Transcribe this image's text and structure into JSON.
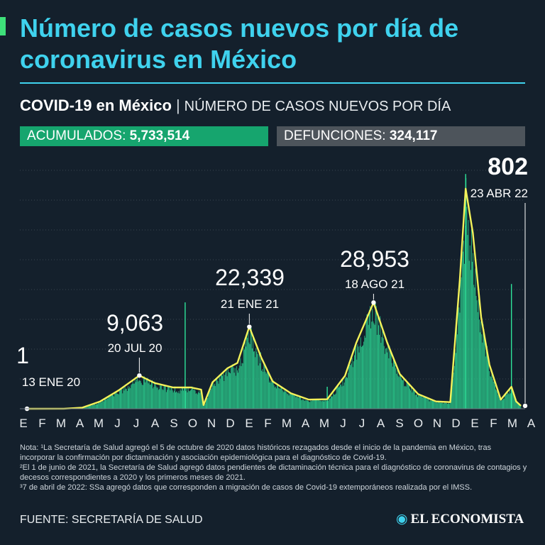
{
  "title": "Número de casos nuevos por día de coronavirus en México",
  "subtitle": {
    "bold": "COVID-19 en México",
    "separator": "|",
    "rest": "NÚMERO DE CASOS NUEVOS POR DÍA"
  },
  "stats": {
    "cumulative_label": "ACUMULADOS:",
    "cumulative_value": "5,733,514",
    "deaths_label": "DEFUNCIONES:",
    "deaths_value": "324,117"
  },
  "colors": {
    "accent": "#3fd2ee",
    "bars": "#2ee39a",
    "trend": "#f4f25a",
    "cases_box": "#16a56e",
    "deaths_box": "#4d545b",
    "background": "#14202c"
  },
  "chart_data": {
    "type": "bar",
    "y_label": "",
    "ylim": [
      0,
      65000
    ],
    "grid": true,
    "x_ticks": [
      "E",
      "F",
      "M",
      "A",
      "M",
      "J",
      "J",
      "A",
      "S",
      "O",
      "N",
      "D",
      "E",
      "F",
      "M",
      "A",
      "M",
      "J",
      "J",
      "A",
      "S",
      "O",
      "N",
      "D",
      "E",
      "F",
      "M",
      "A"
    ],
    "series": [
      {
        "type": "line",
        "x": [
          "2020-01-13",
          "2020-03-15",
          "2020-04-15",
          "2020-05-15",
          "2020-06-15",
          "2020-07-20",
          "2020-08-15",
          "2020-09-15",
          "2020-10-15",
          "2020-11-01",
          "2020-11-05",
          "2020-11-20",
          "2020-12-15",
          "2021-01-01",
          "2021-01-21",
          "2021-02-10",
          "2021-03-01",
          "2021-04-01",
          "2021-05-01",
          "2021-06-01",
          "2021-07-01",
          "2021-07-20",
          "2021-08-18",
          "2021-09-10",
          "2021-10-01",
          "2021-11-01",
          "2021-12-01",
          "2021-12-25",
          "2022-01-10",
          "2022-01-20",
          "2022-02-01",
          "2022-02-15",
          "2022-03-01",
          "2022-03-20",
          "2022-04-07",
          "2022-04-15",
          "2022-04-23"
        ],
        "values": [
          1,
          10,
          300,
          2000,
          5000,
          9063,
          7000,
          5800,
          5800,
          5200,
          1000,
          7200,
          11000,
          12500,
          22339,
          14000,
          7500,
          4200,
          2500,
          2600,
          9000,
          18000,
          28953,
          18000,
          9500,
          4000,
          2000,
          1800,
          35000,
          60000,
          48000,
          25000,
          12000,
          2500,
          6000,
          2000,
          802
        ]
      },
      {
        "type": "bar",
        "spikes": [
          {
            "x": "2020-10-05",
            "value": 29000
          },
          {
            "x": "2021-06-01",
            "value": 6000
          },
          {
            "x": "2022-01-20",
            "value": 64000
          },
          {
            "x": "2022-04-07",
            "value": 34000
          }
        ]
      }
    ],
    "annotations": [
      {
        "value": "1",
        "date": "13 ENE 20"
      },
      {
        "value": "9,063",
        "date": "20 JUL 20"
      },
      {
        "value": "22,339",
        "date": "21 ENE 21"
      },
      {
        "value": "28,953",
        "date": "18 AGO 21"
      },
      {
        "value": "802",
        "date": "23 ABR 22"
      }
    ]
  },
  "notes": [
    "Nota: ¹La Secretaría de Salud agregó el 5 de octubre de 2020 datos históricos rezagados desde el inicio de la pandemia en México, tras incorporar la confirmación por dictaminación y asociación epidemiológica para el diagnóstico de Covid-19.",
    "²El 1 de junio de 2021, la Secretaría de Salud agregó datos pendientes de dictaminación técnica para el diagnóstico de coronavirus de contagios y decesos correspondientes a 2020 y los primeros meses de 2021.",
    "³7 de abril de 2022: SSa agregó datos que corresponden a migración de casos de Covid-19 extemporáneos realizada por el IMSS."
  ],
  "source": "FUENTE: SECRETARÍA DE SALUD",
  "logo_text": "EL ECONOMISTA",
  "logo_icon": "globe-icon"
}
